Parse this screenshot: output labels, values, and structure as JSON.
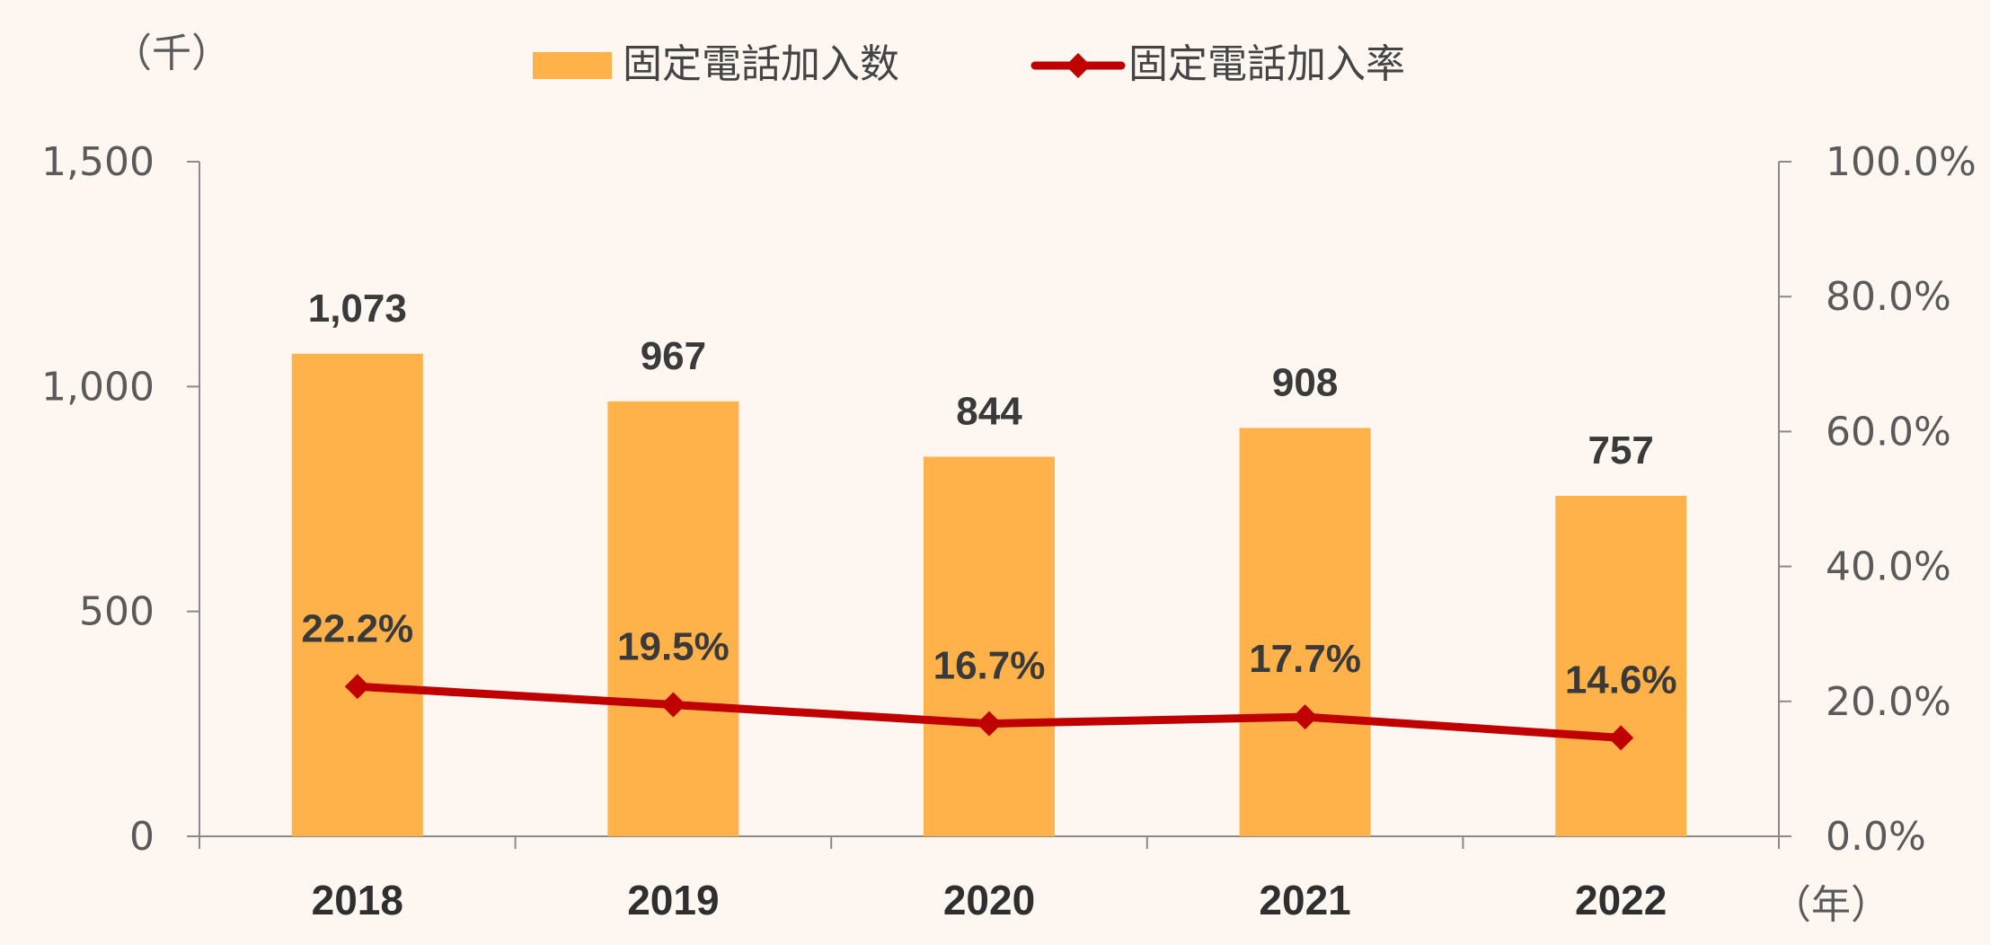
{
  "chart_data": {
    "type": "bar",
    "categories": [
      "2018",
      "2019",
      "2020",
      "2021",
      "2022"
    ],
    "series": [
      {
        "name": "固定電話加入数",
        "kind": "bar",
        "axis": "left",
        "values": [
          1073,
          967,
          844,
          908,
          757
        ],
        "labels": [
          "1,073",
          "967",
          "844",
          "908",
          "757"
        ],
        "color": "#ffb24a"
      },
      {
        "name": "固定電話加入率",
        "kind": "line",
        "marker": "diamond",
        "axis": "right",
        "values": [
          22.2,
          19.5,
          16.7,
          17.7,
          14.6
        ],
        "labels": [
          "22.2%",
          "19.5%",
          "16.7%",
          "17.7%",
          "14.6%"
        ],
        "color": "#c00000"
      }
    ],
    "left_axis": {
      "unit": "（千）",
      "range": [
        0,
        1500
      ],
      "ticks": [
        0,
        500,
        1000,
        1500
      ],
      "tick_labels": [
        "0",
        "500",
        "1,000",
        "1,500"
      ]
    },
    "right_axis": {
      "range": [
        0,
        100
      ],
      "ticks": [
        0,
        20,
        40,
        60,
        80,
        100
      ],
      "tick_labels": [
        "0.0%",
        "20.0%",
        "40.0%",
        "60.0%",
        "80.0%",
        "100.0%"
      ]
    },
    "x_unit": "（年）",
    "legend_position": "top",
    "grid": false
  }
}
